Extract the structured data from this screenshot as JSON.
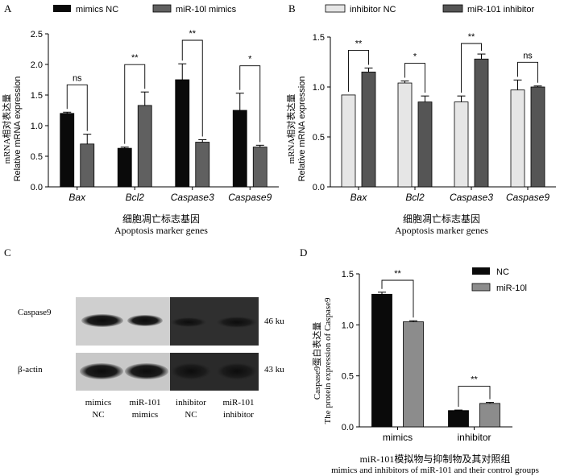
{
  "figure": {
    "A": {
      "panel_label": "A",
      "ylabel_cn": "mRNA相对表达量",
      "ylabel_en": "Relative mRNA expression",
      "xlabel_cn": "细胞凋亡标志基因",
      "xlabel_en": "Apoptosis marker genes",
      "legend": [
        "mimics NC",
        "miR-10l mimics"
      ]
    },
    "B": {
      "panel_label": "B",
      "ylabel_cn": "mRNA相对表达量",
      "ylabel_en": "Relative mRNA expression",
      "xlabel_cn": "细胞凋亡标志基因",
      "xlabel_en": "Apoptosis marker genes",
      "legend": [
        "inhibitor NC",
        "miR-101 inhibitor"
      ]
    },
    "C": {
      "panel_label": "C",
      "rows": [
        {
          "label": "Caspase9",
          "size": "46 ku"
        },
        {
          "label": "β-actin",
          "size": "43 ku"
        }
      ],
      "lanes": [
        {
          "line1": "mimics",
          "line2": "NC"
        },
        {
          "line1": "miR-101",
          "line2": "mimics"
        },
        {
          "line1": "inhibitor",
          "line2": "NC"
        },
        {
          "line1": "miR-101",
          "line2": "inhibitor"
        }
      ]
    },
    "D": {
      "panel_label": "D",
      "ylabel_cn": "Caspase9蛋白表达量",
      "ylabel_en": "The protein expression of Caspase9",
      "xlabel_cn": "miR-101模拟物与抑制物及其对照组",
      "xlabel_en": "mimics and inhibitors of miR-101 and their control groups",
      "legend": [
        "NC",
        "miR-10l"
      ]
    }
  },
  "colors": {
    "series_dark": "#0a0a0a",
    "series_gray": "#606060",
    "series_light": "#e6e6e6",
    "series_mid": "#555555",
    "series_d2": "#8c8c8c"
  },
  "chart_data": [
    {
      "type": "bar",
      "panel": "A",
      "categories": [
        "Bax",
        "Bcl2",
        "Caspase3",
        "Caspase9"
      ],
      "series": [
        {
          "name": "mimics NC",
          "values": [
            1.2,
            0.63,
            1.75,
            1.25
          ],
          "errors": [
            0.02,
            0.02,
            0.26,
            0.28
          ]
        },
        {
          "name": "miR-10l mimics",
          "values": [
            0.7,
            1.33,
            0.73,
            0.65
          ],
          "errors": [
            0.16,
            0.22,
            0.04,
            0.03
          ]
        }
      ],
      "significance": [
        "ns",
        "**",
        "**",
        "*"
      ],
      "yticks": [
        "0.0",
        "0.5",
        "1.0",
        "1.5",
        "2.0",
        "2.5"
      ],
      "ylim": [
        0,
        2.5
      ]
    },
    {
      "type": "bar",
      "panel": "B",
      "categories": [
        "Bax",
        "Bcl2",
        "Caspase3",
        "Caspase9"
      ],
      "series": [
        {
          "name": "inhibitor NC",
          "values": [
            0.92,
            1.04,
            0.85,
            0.97
          ],
          "errors": [
            0.0,
            0.02,
            0.06,
            0.1
          ]
        },
        {
          "name": "miR-101 inhibitor",
          "values": [
            1.15,
            0.85,
            1.28,
            1.0
          ],
          "errors": [
            0.04,
            0.06,
            0.05,
            0.01
          ]
        }
      ],
      "significance": [
        "**",
        "*",
        "**",
        "ns"
      ],
      "yticks": [
        "0.0",
        "0.5",
        "1.0",
        "1.5"
      ],
      "ylim": [
        0,
        1.5
      ]
    },
    {
      "type": "bar",
      "panel": "D",
      "categories": [
        "mimics",
        "inhibitor"
      ],
      "series": [
        {
          "name": "NC",
          "values": [
            1.3,
            0.16
          ],
          "errors": [
            0.02,
            0.005
          ]
        },
        {
          "name": "miR-10l",
          "values": [
            1.03,
            0.23
          ],
          "errors": [
            0.01,
            0.01
          ]
        }
      ],
      "significance": [
        "**",
        "**"
      ],
      "yticks": [
        "0.0",
        "0.5",
        "1.0",
        "1.5"
      ],
      "ylim": [
        0,
        1.5
      ]
    }
  ]
}
